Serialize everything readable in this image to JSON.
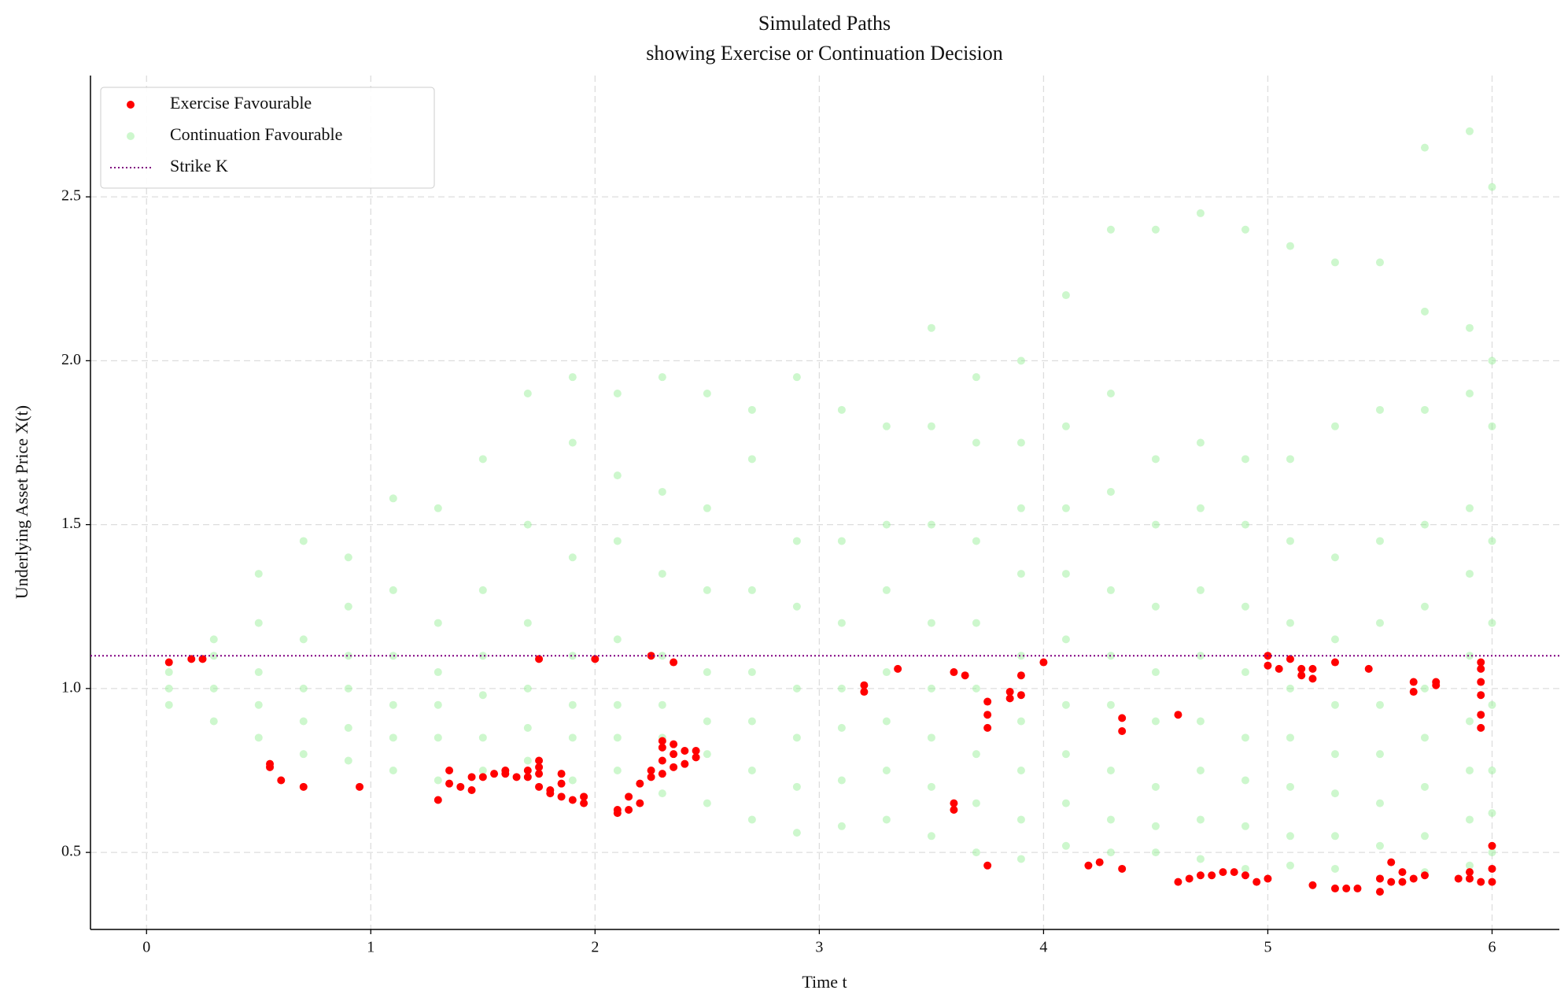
{
  "chart_data": {
    "type": "scatter",
    "title": "Simulated Paths",
    "subtitle": "showing Exercise or Continuation Decision",
    "x_label": "Time t",
    "y_label": "Underlying Asset Price X(t)",
    "xlim": [
      -0.25,
      6.3
    ],
    "ylim": [
      0.265,
      2.87
    ],
    "xticks": [
      0,
      1,
      2,
      3,
      4,
      5,
      6
    ],
    "yticks": [
      0.5,
      {
        "value": 1,
        "label": "1.0"
      },
      1.5,
      {
        "value": 2,
        "label": "2.0"
      },
      2.5
    ],
    "grid": true,
    "legend": "upper left",
    "strike": {
      "name": "Strike K",
      "value": 1.1,
      "color": "#800080"
    },
    "series": [
      {
        "name": "Exercise Favourable",
        "color": "#ff0000",
        "x": [
          0.1,
          0.2,
          0.25,
          0.55,
          0.55,
          0.6,
          0.7,
          0.95,
          1.3,
          1.35,
          1.35,
          1.4,
          1.45,
          1.45,
          1.5,
          1.55,
          1.6,
          1.6,
          1.65,
          1.7,
          1.7,
          1.75,
          1.75,
          1.75,
          1.75,
          1.75,
          1.8,
          1.8,
          1.85,
          1.85,
          1.85,
          1.9,
          1.95,
          1.95,
          2.0,
          2.1,
          2.1,
          2.15,
          2.15,
          2.2,
          2.2,
          2.25,
          2.25,
          2.25,
          2.3,
          2.3,
          2.3,
          2.3,
          2.35,
          2.35,
          2.35,
          2.35,
          2.4,
          2.4,
          2.45,
          2.45,
          3.2,
          3.2,
          3.35,
          3.6,
          3.6,
          3.6,
          3.65,
          3.75,
          3.75,
          3.75,
          3.75,
          3.85,
          3.85,
          3.9,
          3.9,
          4.0,
          4.2,
          4.25,
          4.35,
          4.35,
          4.35,
          4.6,
          4.6,
          4.65,
          4.7,
          4.75,
          4.8,
          4.85,
          4.9,
          4.95,
          5.0,
          5.0,
          5.0,
          5.05,
          5.1,
          5.15,
          5.15,
          5.2,
          5.2,
          5.2,
          5.3,
          5.3,
          5.35,
          5.4,
          5.45,
          5.5,
          5.5,
          5.55,
          5.55,
          5.6,
          5.6,
          5.65,
          5.65,
          5.65,
          5.7,
          5.75,
          5.75,
          5.85,
          5.9,
          5.9,
          5.95,
          5.95,
          5.95,
          5.95,
          5.95,
          5.95,
          5.95,
          6.0,
          6.0,
          6.0
        ],
        "values": [
          1.08,
          1.09,
          1.09,
          0.77,
          0.76,
          0.72,
          0.7,
          0.7,
          0.66,
          0.75,
          0.71,
          0.7,
          0.69,
          0.73,
          0.73,
          0.74,
          0.75,
          0.74,
          0.73,
          0.75,
          0.73,
          0.78,
          0.76,
          0.74,
          0.7,
          1.09,
          0.68,
          0.69,
          0.67,
          0.71,
          0.74,
          0.66,
          0.67,
          0.65,
          1.09,
          0.63,
          0.62,
          0.63,
          0.67,
          0.65,
          0.71,
          0.73,
          0.75,
          1.1,
          0.74,
          0.78,
          0.82,
          0.84,
          0.76,
          0.8,
          0.83,
          1.08,
          0.77,
          0.81,
          0.79,
          0.81,
          1.01,
          0.99,
          1.06,
          1.05,
          0.65,
          0.63,
          1.04,
          0.96,
          0.92,
          0.88,
          0.46,
          0.99,
          0.97,
          1.04,
          0.98,
          1.08,
          0.46,
          0.47,
          0.91,
          0.87,
          0.45,
          0.92,
          0.41,
          0.42,
          0.43,
          0.43,
          0.44,
          0.44,
          0.43,
          0.41,
          1.1,
          1.07,
          0.42,
          1.06,
          1.09,
          1.06,
          1.04,
          1.06,
          1.03,
          0.4,
          1.08,
          0.39,
          0.39,
          0.39,
          1.06,
          0.38,
          0.42,
          0.47,
          0.41,
          0.44,
          0.41,
          1.02,
          0.99,
          0.42,
          0.43,
          1.01,
          1.02,
          0.42,
          0.44,
          0.42,
          1.08,
          1.06,
          1.02,
          0.98,
          0.92,
          0.88,
          0.41,
          0.52,
          0.45,
          0.41
        ]
      },
      {
        "name": "Continuation Favourable",
        "color": "#90ee90",
        "x": [
          0.1,
          0.1,
          0.1,
          0.3,
          0.3,
          0.3,
          0.3,
          0.5,
          0.5,
          0.5,
          0.5,
          0.5,
          0.7,
          0.7,
          0.7,
          0.7,
          0.7,
          0.9,
          0.9,
          0.9,
          0.9,
          0.9,
          0.9,
          1.1,
          1.1,
          1.1,
          1.1,
          1.1,
          1.1,
          1.3,
          1.3,
          1.3,
          1.3,
          1.3,
          1.3,
          1.5,
          1.5,
          1.5,
          1.5,
          1.5,
          1.5,
          1.7,
          1.7,
          1.7,
          1.7,
          1.7,
          1.7,
          1.9,
          1.9,
          1.9,
          1.9,
          1.9,
          1.9,
          1.9,
          2.1,
          2.1,
          2.1,
          2.1,
          2.1,
          2.1,
          2.1,
          2.3,
          2.3,
          2.3,
          2.3,
          2.3,
          2.3,
          2.3,
          2.5,
          2.5,
          2.5,
          2.5,
          2.5,
          2.5,
          2.5,
          2.7,
          2.7,
          2.7,
          2.7,
          2.7,
          2.7,
          2.7,
          2.9,
          2.9,
          2.9,
          2.9,
          2.9,
          2.9,
          2.9,
          3.1,
          3.1,
          3.1,
          3.1,
          3.1,
          3.1,
          3.1,
          3.3,
          3.3,
          3.3,
          3.3,
          3.3,
          3.3,
          3.3,
          3.5,
          3.5,
          3.5,
          3.5,
          3.5,
          3.5,
          3.5,
          3.5,
          3.7,
          3.7,
          3.7,
          3.7,
          3.7,
          3.7,
          3.7,
          3.7,
          3.9,
          3.9,
          3.9,
          3.9,
          3.9,
          3.9,
          3.9,
          3.9,
          3.9,
          4.1,
          4.1,
          4.1,
          4.1,
          4.1,
          4.1,
          4.1,
          4.1,
          4.1,
          4.3,
          4.3,
          4.3,
          4.3,
          4.3,
          4.3,
          4.3,
          4.3,
          4.3,
          4.5,
          4.5,
          4.5,
          4.5,
          4.5,
          4.5,
          4.5,
          4.5,
          4.5,
          4.7,
          4.7,
          4.7,
          4.7,
          4.7,
          4.7,
          4.7,
          4.7,
          4.7,
          4.9,
          4.9,
          4.9,
          4.9,
          4.9,
          4.9,
          4.9,
          4.9,
          4.9,
          5.1,
          5.1,
          5.1,
          5.1,
          5.1,
          5.1,
          5.1,
          5.1,
          5.1,
          5.3,
          5.3,
          5.3,
          5.3,
          5.3,
          5.3,
          5.3,
          5.3,
          5.3,
          5.5,
          5.5,
          5.5,
          5.5,
          5.5,
          5.5,
          5.5,
          5.5,
          5.5,
          5.7,
          5.7,
          5.7,
          5.7,
          5.7,
          5.7,
          5.7,
          5.7,
          5.7,
          5.7,
          5.9,
          5.9,
          5.9,
          5.9,
          5.9,
          5.9,
          5.9,
          5.9,
          5.9,
          5.9,
          6.0,
          6.0,
          6.0,
          6.0,
          6.0,
          6.0,
          6.0,
          6.0,
          6.0
        ],
        "values": [
          0.95,
          1.0,
          1.05,
          0.9,
          1.0,
          1.1,
          1.15,
          0.85,
          0.95,
          1.05,
          1.2,
          1.35,
          0.8,
          0.9,
          1.0,
          1.15,
          1.45,
          0.78,
          0.88,
          1.0,
          1.1,
          1.25,
          1.4,
          0.75,
          0.85,
          0.95,
          1.1,
          1.3,
          1.58,
          0.72,
          0.85,
          0.95,
          1.05,
          1.2,
          1.55,
          0.75,
          0.85,
          0.98,
          1.1,
          1.3,
          1.7,
          0.78,
          0.88,
          1.0,
          1.2,
          1.5,
          1.9,
          0.72,
          0.85,
          0.95,
          1.1,
          1.4,
          1.75,
          1.95,
          0.75,
          0.85,
          0.95,
          1.15,
          1.45,
          1.65,
          1.9,
          0.68,
          0.85,
          0.95,
          1.1,
          1.35,
          1.6,
          1.95,
          0.65,
          0.8,
          0.9,
          1.05,
          1.3,
          1.55,
          1.9,
          0.6,
          0.75,
          0.9,
          1.05,
          1.3,
          1.7,
          1.85,
          0.56,
          0.7,
          0.85,
          1.0,
          1.25,
          1.45,
          1.95,
          0.58,
          0.72,
          0.88,
          1.0,
          1.2,
          1.45,
          1.85,
          0.6,
          0.75,
          0.9,
          1.05,
          1.3,
          1.5,
          1.8,
          0.55,
          0.7,
          0.85,
          1.0,
          1.2,
          1.5,
          1.8,
          2.1,
          0.5,
          0.65,
          0.8,
          1.0,
          1.2,
          1.45,
          1.75,
          1.95,
          0.48,
          0.6,
          0.75,
          0.9,
          1.1,
          1.35,
          1.55,
          1.75,
          2.0,
          0.52,
          0.65,
          0.8,
          0.95,
          1.15,
          1.35,
          1.55,
          1.8,
          2.2,
          0.5,
          0.6,
          0.75,
          0.95,
          1.1,
          1.3,
          1.6,
          1.9,
          2.4,
          0.5,
          0.58,
          0.7,
          0.9,
          1.05,
          1.25,
          1.5,
          1.7,
          2.4,
          0.48,
          0.6,
          0.75,
          0.9,
          1.1,
          1.3,
          1.55,
          1.75,
          2.45,
          0.45,
          0.58,
          0.72,
          0.85,
          1.05,
          1.25,
          1.5,
          1.7,
          2.4,
          0.46,
          0.55,
          0.7,
          0.85,
          1.0,
          1.2,
          1.45,
          1.7,
          2.35,
          0.45,
          0.55,
          0.68,
          0.8,
          0.95,
          1.15,
          1.4,
          1.8,
          2.3,
          0.42,
          0.52,
          0.65,
          0.8,
          0.95,
          1.2,
          1.45,
          1.85,
          2.3,
          0.44,
          0.55,
          0.7,
          0.85,
          1.0,
          1.25,
          1.5,
          1.85,
          2.15,
          2.65,
          0.46,
          0.6,
          0.75,
          0.9,
          1.1,
          1.35,
          1.55,
          1.9,
          2.1,
          2.7,
          0.5,
          0.62,
          0.75,
          0.95,
          1.2,
          1.45,
          1.8,
          2.0,
          2.53
        ]
      }
    ]
  }
}
